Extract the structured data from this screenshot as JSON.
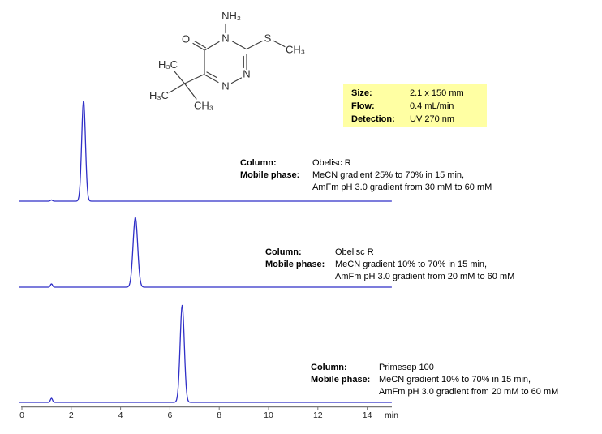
{
  "molecule": {
    "name": "triazinone-structure",
    "labels": {
      "nh2": "NH₂",
      "o": "O",
      "n_top": "N",
      "s": "S",
      "s_ch3": "CH₃",
      "n_right": "N",
      "n_bottom": "N",
      "h3c_upper": "H₃C",
      "h3c_lower": "H₃C",
      "ch3_bottom": "CH₃"
    }
  },
  "info_box": {
    "background": "#ffffa3",
    "rows": [
      {
        "label": "Size:",
        "value": "2.1 x 150 mm"
      },
      {
        "label": "Flow:",
        "value": "0.4 mL/min"
      },
      {
        "label": "Detection:",
        "value": "UV 270 nm"
      }
    ]
  },
  "annotations": [
    {
      "column_label": "Column:",
      "column_value": "Obelisc R",
      "mobile_label": "Mobile phase:",
      "mobile_line1": "MeCN gradient 25% to 70% in 15 min,",
      "mobile_line2": "AmFm pH 3.0 gradient from 30 mM to 60 mM"
    },
    {
      "column_label": "Column:",
      "column_value": "Obelisc R",
      "mobile_label": "Mobile phase:",
      "mobile_line1": "MeCN gradient 10% to 70% in 15 min,",
      "mobile_line2": "AmFm pH 3.0 gradient from 20 mM to 60 mM"
    },
    {
      "column_label": "Column:",
      "column_value": "Primesep 100",
      "mobile_label": "Mobile phase:",
      "mobile_line1": "MeCN gradient 10% to 70% in 15 min,",
      "mobile_line2": "AmFm pH 3.0 gradient from 20 mM to 60 mM"
    }
  ],
  "chart_data": {
    "type": "line",
    "title": "",
    "xlabel": "min",
    "ylabel": "",
    "x_range": [
      0,
      15
    ],
    "x_ticks": [
      0,
      2,
      4,
      6,
      8,
      10,
      12,
      14
    ],
    "grid": false,
    "legend": "none (each trace annotated with its column and mobile phase)",
    "line_color": "#2f2fc7",
    "axis_color": "#777777",
    "traces": [
      {
        "column": "Obelisc R",
        "mobile_phase": "MeCN gradient 25% to 70% in 15 min, AmFm pH 3.0 gradient from 30 mM to 60 mM",
        "peaks": [
          {
            "time_min": 1.2,
            "rel_height": 0.012,
            "fwhm_min": 0.1
          },
          {
            "time_min": 2.5,
            "rel_height": 1.0,
            "fwhm_min": 0.18
          }
        ]
      },
      {
        "column": "Obelisc R",
        "mobile_phase": "MeCN gradient 10% to 70% in 15 min, AmFm pH 3.0 gradient from 20 mM to 60 mM",
        "peaks": [
          {
            "time_min": 1.2,
            "rel_height": 0.047,
            "fwhm_min": 0.1
          },
          {
            "time_min": 4.6,
            "rel_height": 1.0,
            "fwhm_min": 0.22
          }
        ]
      },
      {
        "column": "Primesep 100",
        "mobile_phase": "MeCN gradient 10% to 70% in 15 min, AmFm pH 3.0 gradient from 20 mM to 60 mM",
        "peaks": [
          {
            "time_min": 1.2,
            "rel_height": 0.042,
            "fwhm_min": 0.1
          },
          {
            "time_min": 6.5,
            "rel_height": 1.0,
            "fwhm_min": 0.2
          }
        ]
      }
    ]
  }
}
